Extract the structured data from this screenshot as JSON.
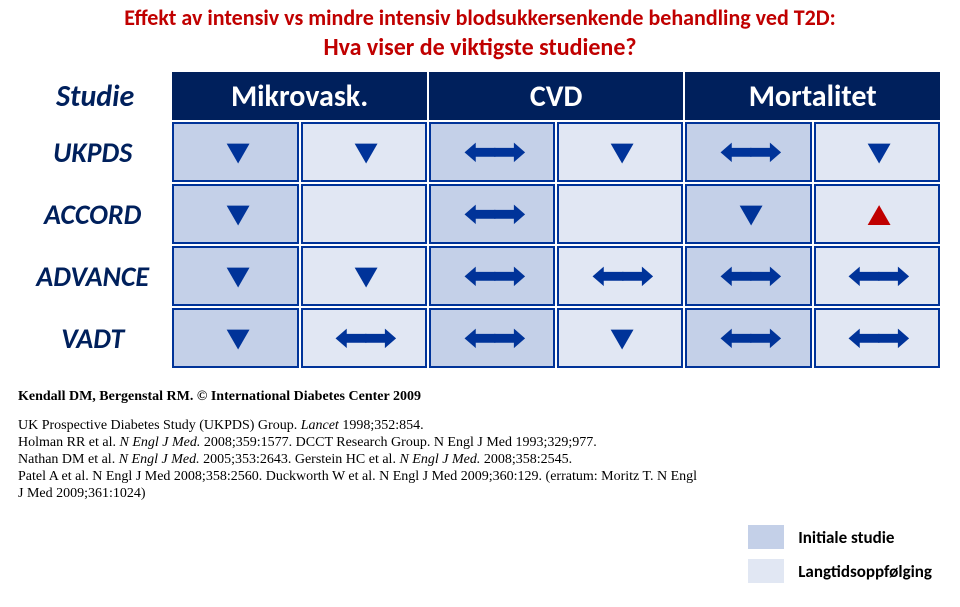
{
  "title": {
    "line1": "Effekt av intensiv vs mindre intensiv blodsukkersenkende behandling ved T2D:",
    "line2": "Hva viser de viktigste studiene?",
    "color": "#c00000",
    "fontsize_line1": 22,
    "fontsize_line2": 24
  },
  "table": {
    "corner": "Studie",
    "headers": [
      "Mikrovask.",
      "CVD",
      "Mortalitet"
    ],
    "header_bg": "#00205c",
    "header_fg": "#ffffff",
    "header_fontsize": 30,
    "cell_border_color": "#003399",
    "studycol_bg": "#ffffff",
    "studycol_color": "#00205c",
    "studycol_fontsize": 28,
    "initial_bg": "#c4d0e8",
    "followup_bg": "#e1e7f3",
    "arrow_fontsize": 34,
    "arrow_down_color": "#003399",
    "arrow_neutral_color": "#003399",
    "arrow_up_color": "#c00000",
    "rows": [
      {
        "name": "UKPDS",
        "cells": [
          "down",
          "down",
          "neutral",
          "down",
          "neutral",
          "down"
        ]
      },
      {
        "name": "ACCORD",
        "cells": [
          "down",
          "",
          "neutral",
          "",
          "down",
          "up_red"
        ]
      },
      {
        "name": "ADVANCE",
        "cells": [
          "down",
          "down",
          "neutral",
          "neutral",
          "neutral",
          "neutral"
        ]
      },
      {
        "name": "VADT",
        "cells": [
          "down",
          "neutral",
          "neutral",
          "down",
          "neutral",
          "neutral"
        ]
      }
    ]
  },
  "refs": {
    "fontsize": 14,
    "line1": "Kendall DM, Bergenstal RM. © International Diabetes Center 2009",
    "line2a": "UK Prospective Diabetes Study (UKPDS) Group. ",
    "line2b": "Lancet",
    "line2c": " 1998;352:854.",
    "line3a": "Holman RR et al. ",
    "line3b": "N Engl J Med.",
    "line3c": " 2008;359:1577.   DCCT Research Group. N Engl J Med 1993;329;977.",
    "line4a": "Nathan DM et al. ",
    "line4b": "N Engl J Med.",
    "line4c": " 2005;353:2643.   Gerstein HC et al. ",
    "line4d": "N Engl J Med.",
    "line4e": " 2008;358:2545.",
    "line5": "Patel A et al. N Engl J Med 2008;358:2560.   Duckworth W et al.  N Engl J Med 2009;360:129. (erratum: Moritz T. N Engl J Med 2009;361:1024)"
  },
  "legend": {
    "fontsize": 17,
    "items": [
      {
        "swatch": "#c4d0e8",
        "label": "Initiale studie"
      },
      {
        "swatch": "#e1e7f3",
        "label": "Langtidsoppfølging"
      }
    ]
  }
}
